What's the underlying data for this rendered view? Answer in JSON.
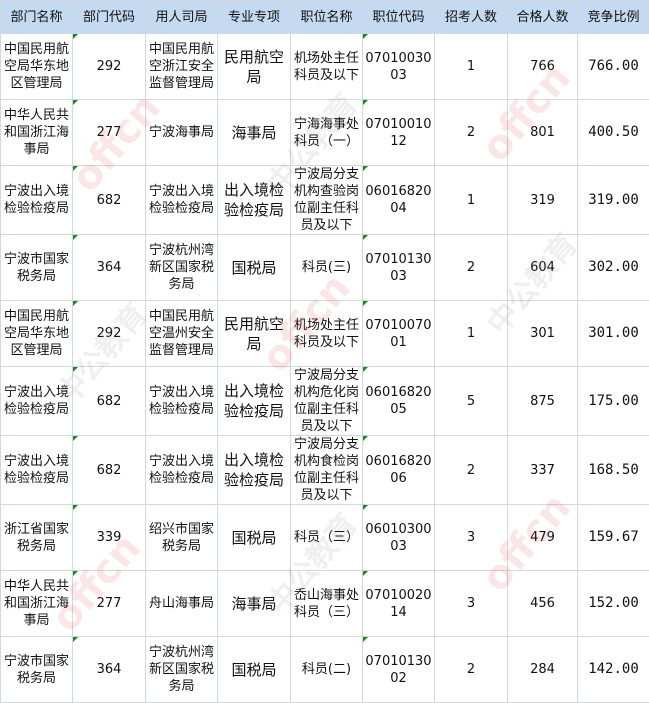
{
  "headers": [
    "部门名称",
    "部门代码",
    "用人司局",
    "专业专项",
    "职位名称",
    "职位代码",
    "招考人数",
    "合格人数",
    "竞争比例"
  ],
  "rows": [
    {
      "dept": "中国民用航空局华东地区管理局",
      "code": "292",
      "bureau": "中国民用航空浙江安全监督管理局",
      "specialty": "民用航空局",
      "position": "机场处主任科员及以下",
      "pos_code": "0701003003",
      "recruit": "1",
      "qualified": "766",
      "ratio": "766.00"
    },
    {
      "dept": "中华人民共和国浙江海事局",
      "code": "277",
      "bureau": "宁波海事局",
      "specialty": "海事局",
      "position": "宁海海事处科员（一）",
      "pos_code": "0701001012",
      "recruit": "2",
      "qualified": "801",
      "ratio": "400.50"
    },
    {
      "dept": "宁波出入境检验检疫局",
      "code": "682",
      "bureau": "宁波出入境检验检疫局",
      "specialty": "出入境检验检疫局",
      "position": "宁波局分支机构查验岗位副主任科员及以下",
      "pos_code": "0601682004",
      "recruit": "1",
      "qualified": "319",
      "ratio": "319.00"
    },
    {
      "dept": "宁波市国家税务局",
      "code": "364",
      "bureau": "宁波杭州湾新区国家税务局",
      "specialty": "国税局",
      "position": "科员(三)",
      "pos_code": "0701013003",
      "recruit": "2",
      "qualified": "604",
      "ratio": "302.00"
    },
    {
      "dept": "中国民用航空局华东地区管理局",
      "code": "292",
      "bureau": "中国民用航空温州安全监督管理局",
      "specialty": "民用航空局",
      "position": "机场处主任科员及以下",
      "pos_code": "0701007001",
      "recruit": "1",
      "qualified": "301",
      "ratio": "301.00"
    },
    {
      "dept": "宁波出入境检验检疫局",
      "code": "682",
      "bureau": "宁波出入境检验检疫局",
      "specialty": "出入境检验检疫局",
      "position": "宁波局分支机构危化岗位副主任科员及以下",
      "pos_code": "0601682005",
      "recruit": "5",
      "qualified": "875",
      "ratio": "175.00"
    },
    {
      "dept": "宁波出入境检验检疫局",
      "code": "682",
      "bureau": "宁波出入境检验检疫局",
      "specialty": "出入境检验检疫局",
      "position": "宁波局分支机构食检岗位副主任科员及以下",
      "pos_code": "0601682006",
      "recruit": "2",
      "qualified": "337",
      "ratio": "168.50"
    },
    {
      "dept": "浙江省国家税务局",
      "code": "339",
      "bureau": "绍兴市国家税务局",
      "specialty": "国税局",
      "position": "科员（三）",
      "pos_code": "0601030003",
      "recruit": "3",
      "qualified": "479",
      "ratio": "159.67"
    },
    {
      "dept": "中华人民共和国浙江海事局",
      "code": "277",
      "bureau": "舟山海事局",
      "specialty": "海事局",
      "position": "岙山海事处科员（三）",
      "pos_code": "0701002014",
      "recruit": "3",
      "qualified": "456",
      "ratio": "152.00"
    },
    {
      "dept": "宁波市国家税务局",
      "code": "364",
      "bureau": "宁波杭州湾新区国家税务局",
      "specialty": "国税局",
      "position": "科员(二)",
      "pos_code": "0701013002",
      "recruit": "2",
      "qualified": "284",
      "ratio": "142.00"
    }
  ],
  "watermark": {
    "brand": "offcn",
    "name": "中公教育"
  },
  "colors": {
    "header_bg": "#c5d9f1",
    "grid": "#d0d7e5",
    "watermark": "#dc3c46"
  }
}
